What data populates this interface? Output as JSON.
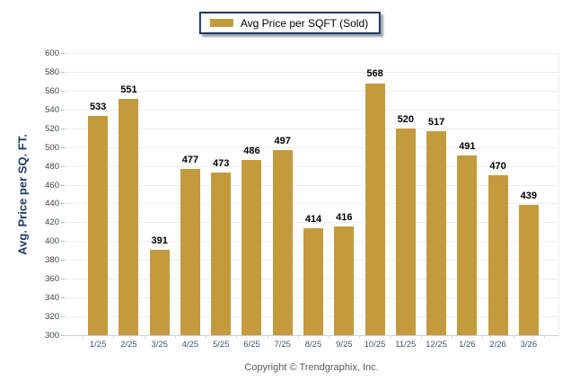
{
  "legend": {
    "label": "Avg Price per SQFT (Sold)",
    "swatch_icon": "bar-color-swatch"
  },
  "footer": {
    "copyright": "Copyright © Trendgraphix, Inc."
  },
  "colors": {
    "bar": "#C49A3E",
    "legend_border": "#1F3864",
    "grid": "#EDEDED",
    "axis_line": "#CFCFCF",
    "blue_tick": "#9CC2E5",
    "x_boundary_tick": "#D9D9D9",
    "value_label": "#000000",
    "x_label": "#44546A",
    "y_label": "#404040",
    "y_title": "#1F3864",
    "copyright": "#595959"
  },
  "chart_data": {
    "type": "bar",
    "title": "",
    "series": [
      {
        "name": "Avg Price per SQFT (Sold)",
        "values": [
          533,
          551,
          391,
          477,
          473,
          486,
          497,
          414,
          416,
          568,
          520,
          517,
          491,
          470,
          439
        ]
      }
    ],
    "categories": [
      "1/25",
      "2/25",
      "3/25",
      "4/25",
      "5/25",
      "6/25",
      "7/25",
      "8/25",
      "9/25",
      "10/25",
      "11/25",
      "12/25",
      "1/26",
      "2/26",
      "3/26"
    ],
    "values": [
      533,
      551,
      391,
      477,
      473,
      486,
      497,
      414,
      416,
      568,
      520,
      517,
      491,
      470,
      439
    ],
    "value_labels_shown": true,
    "xlabel": "",
    "ylabel": "Avg. Price per SQ. FT.",
    "ylim": [
      300,
      600
    ],
    "ytick_step": 20,
    "yticks": [
      300,
      320,
      340,
      360,
      380,
      400,
      420,
      440,
      460,
      480,
      500,
      520,
      540,
      560,
      580,
      600
    ],
    "grid": true,
    "legend_position": "top-center",
    "bar_color": "#C49A3E"
  }
}
